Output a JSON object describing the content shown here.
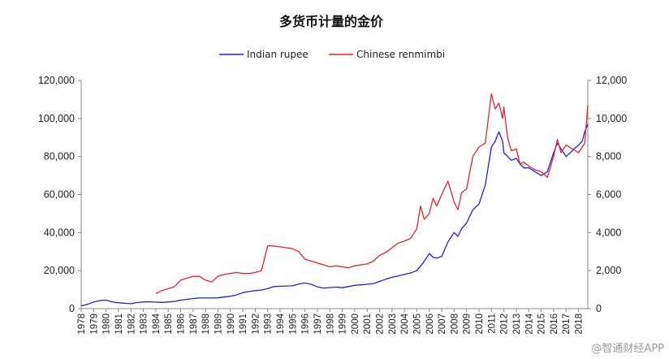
{
  "watermark": "@智通财经APP",
  "chart_data": {
    "type": "line",
    "title": "多货币计量的金价",
    "legend_position": "top-center",
    "grid": false,
    "y_left": {
      "min": 0,
      "max": 120000,
      "ticks": [
        "0",
        "20,000",
        "40,000",
        "60,000",
        "80,000",
        "100,000",
        "120,000"
      ]
    },
    "y_right": {
      "min": 0,
      "max": 12000,
      "ticks": [
        "0",
        "2,000",
        "4,000",
        "6,000",
        "8,000",
        "10,000",
        "12,000"
      ]
    },
    "x_range": [
      1978,
      2018.75
    ],
    "x_ticks": [
      "1978",
      "1979",
      "1980",
      "1981",
      "1982",
      "1983",
      "1984",
      "1985",
      "1986",
      "1987",
      "1988",
      "1989",
      "1990",
      "1991",
      "1992",
      "1993",
      "1994",
      "1995",
      "1996",
      "1997",
      "1998",
      "1999",
      "2000",
      "2001",
      "2002",
      "2003",
      "2004",
      "2005",
      "2006",
      "2007",
      "2008",
      "2009",
      "2010",
      "2011",
      "2012",
      "2013",
      "2014",
      "2015",
      "2016",
      "2017",
      "2018"
    ],
    "series": [
      {
        "name": "Indian rupee",
        "axis": "left",
        "color": "#1f22d6",
        "x": [
          1978,
          1978.5,
          1979,
          1979.5,
          1980,
          1980.3,
          1980.7,
          1981,
          1981.5,
          1982,
          1982.5,
          1983,
          1983.5,
          1984,
          1984.5,
          1985,
          1985.5,
          1986,
          1986.5,
          1987,
          1987.5,
          1988,
          1988.5,
          1989,
          1989.5,
          1990,
          1990.5,
          1991,
          1991.5,
          1992,
          1992.5,
          1993,
          1993.5,
          1994,
          1994.5,
          1995,
          1995.5,
          1996,
          1996.5,
          1997,
          1997.5,
          1998,
          1998.5,
          1999,
          1999.5,
          2000,
          2000.5,
          2001,
          2001.5,
          2002,
          2002.5,
          2003,
          2003.5,
          2004,
          2004.5,
          2005,
          2005.5,
          2006,
          2006.3,
          2006.6,
          2007,
          2007.5,
          2008,
          2008.3,
          2008.6,
          2009,
          2009.5,
          2010,
          2010.5,
          2011,
          2011.3,
          2011.6,
          2011.9,
          2012,
          2012.3,
          2012.6,
          2013,
          2013.3,
          2013.6,
          2014,
          2014.5,
          2015,
          2015.5,
          2016,
          2016.3,
          2016.6,
          2017,
          2017.5,
          2018,
          2018.3,
          2018.5,
          2018.75
        ],
        "y": [
          1500,
          2200,
          3500,
          4200,
          4500,
          3900,
          3300,
          3100,
          2800,
          2600,
          3200,
          3500,
          3600,
          3400,
          3300,
          3500,
          3800,
          4500,
          4900,
          5300,
          5600,
          5600,
          5600,
          5700,
          6100,
          6500,
          7200,
          8400,
          9000,
          9500,
          9800,
          10500,
          11600,
          11800,
          11900,
          12000,
          13000,
          13500,
          12800,
          11500,
          10800,
          11100,
          11300,
          11000,
          11600,
          12200,
          12500,
          12800,
          13200,
          14300,
          15500,
          16500,
          17200,
          18000,
          18800,
          20000,
          24000,
          29000,
          27000,
          26500,
          27500,
          35000,
          40000,
          38000,
          42000,
          45000,
          52000,
          55000,
          65000,
          85000,
          88000,
          93000,
          88000,
          82000,
          80000,
          78000,
          79000,
          76000,
          74000,
          74000,
          72000,
          70000,
          72000,
          82000,
          87000,
          84000,
          80000,
          83000,
          86000,
          88000,
          93000,
          97000
        ]
      },
      {
        "name": "Chinese renmimbi",
        "axis": "right",
        "color": "#e1262d",
        "x": [
          1984,
          1984.5,
          1985,
          1985.5,
          1986,
          1986.5,
          1987,
          1987.5,
          1988,
          1988.5,
          1989,
          1989.5,
          1990,
          1990.5,
          1991,
          1991.5,
          1992,
          1992.5,
          1993,
          1993.3,
          1994,
          1994.5,
          1995,
          1995.5,
          1996,
          1996.5,
          1997,
          1997.5,
          1998,
          1998.5,
          1999,
          1999.5,
          2000,
          2000.5,
          2001,
          2001.5,
          2002,
          2002.5,
          2003,
          2003.5,
          2004,
          2004.5,
          2005,
          2005.3,
          2005.6,
          2006,
          2006.3,
          2006.6,
          2007,
          2007.5,
          2008,
          2008.3,
          2008.6,
          2009,
          2009.5,
          2010,
          2010.5,
          2011,
          2011.3,
          2011.6,
          2011.9,
          2012,
          2012.3,
          2012.6,
          2013,
          2013.3,
          2013.6,
          2014,
          2014.5,
          2015,
          2015.5,
          2016,
          2016.3,
          2016.6,
          2017,
          2017.5,
          2018,
          2018.3,
          2018.5,
          2018.75
        ],
        "y": [
          800,
          950,
          1050,
          1150,
          1500,
          1600,
          1700,
          1700,
          1500,
          1400,
          1700,
          1800,
          1850,
          1900,
          1850,
          1850,
          1900,
          2000,
          3300,
          3300,
          3250,
          3200,
          3150,
          3000,
          2600,
          2500,
          2400,
          2300,
          2200,
          2250,
          2200,
          2150,
          2250,
          2300,
          2350,
          2500,
          2800,
          2950,
          3200,
          3450,
          3550,
          3700,
          4200,
          5400,
          4700,
          5000,
          5800,
          5400,
          6000,
          6700,
          5600,
          5200,
          6100,
          6300,
          8000,
          8500,
          8700,
          11300,
          10500,
          10800,
          10000,
          10600,
          9000,
          8300,
          8400,
          7600,
          7700,
          7500,
          7300,
          7200,
          6900,
          8000,
          8900,
          8200,
          8600,
          8400,
          8200,
          8500,
          8700,
          10700
        ]
      }
    ]
  }
}
